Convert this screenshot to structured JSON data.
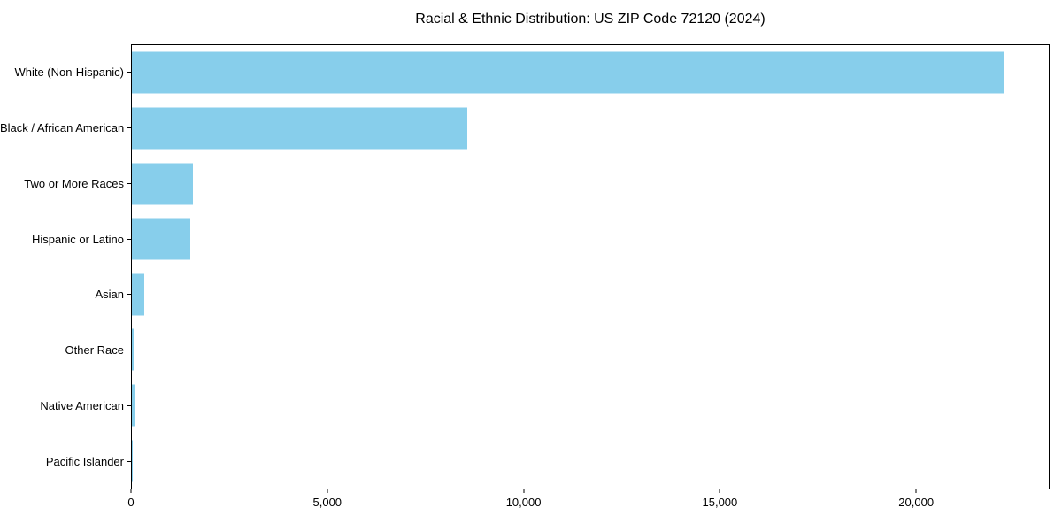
{
  "title": "Racial & Ethnic Distribution: US ZIP Code 72120 (2024)",
  "colors": {
    "bar": "#87CEEB",
    "axis": "#000000",
    "text": "#000000",
    "background": "#ffffff"
  },
  "chart_data": {
    "type": "bar",
    "orientation": "horizontal",
    "title": "Racial & Ethnic Distribution: US ZIP Code 72120 (2024)",
    "categories": [
      "White (Non-Hispanic)",
      "Black / African American",
      "Two or More Races",
      "Hispanic or Latino",
      "Asian",
      "Other Race",
      "Native American",
      "Pacific Islander"
    ],
    "values": [
      22280,
      8560,
      1560,
      1490,
      320,
      55,
      65,
      10
    ],
    "xlabel": "",
    "ylabel": "",
    "xlim": [
      0,
      23400
    ],
    "xticks": [
      {
        "value": 0,
        "label": "0"
      },
      {
        "value": 5000,
        "label": "5,000"
      },
      {
        "value": 10000,
        "label": "10,000"
      },
      {
        "value": 15000,
        "label": "15,000"
      },
      {
        "value": 20000,
        "label": "20,000"
      }
    ],
    "bar_color": "#87CEEB",
    "grid": false,
    "legend": false
  }
}
